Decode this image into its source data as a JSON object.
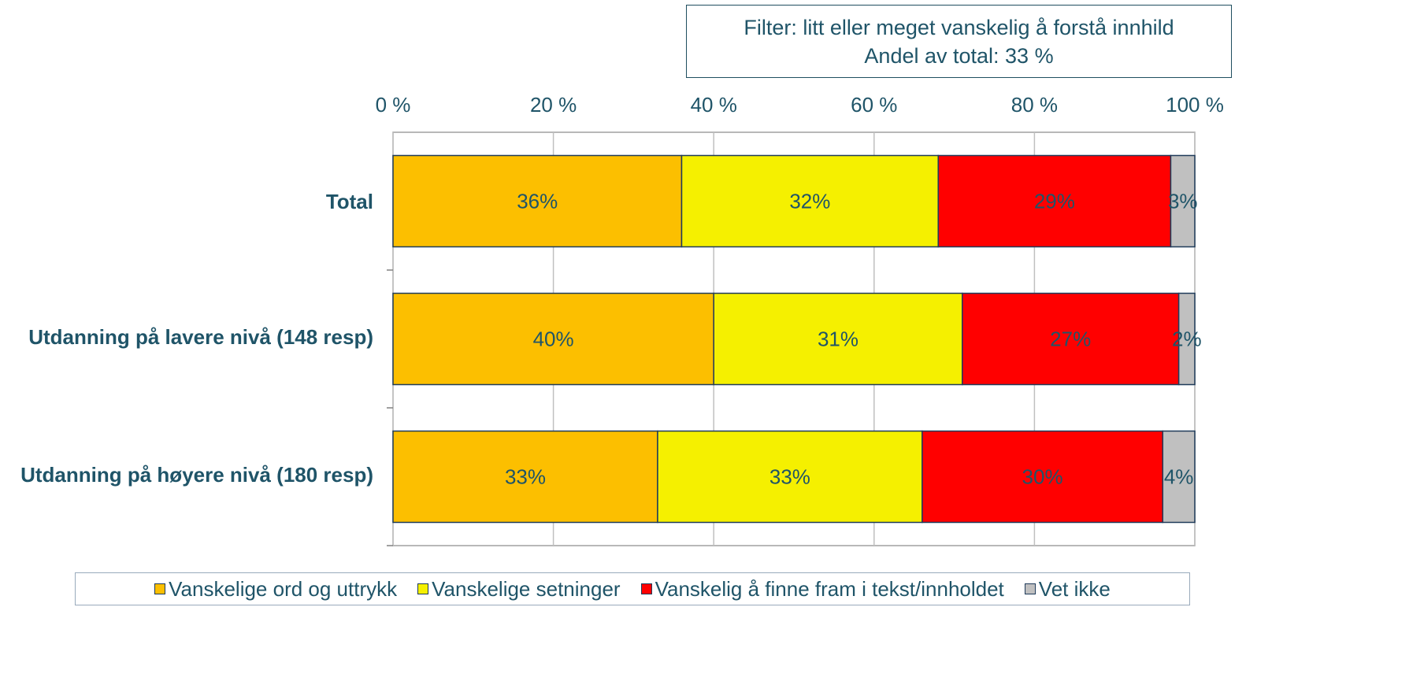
{
  "chart_data": {
    "type": "stacked_barh",
    "annotations": [
      "Filter: litt eller meget vanskelig å forstå innhild",
      "Andel av total: 33 %"
    ],
    "categories": [
      "Total",
      "Utdanning på lavere nivå (148 resp)",
      "Utdanning på høyere nivå (180 resp)"
    ],
    "series": [
      {
        "name": "Vanskelige ord og uttrykk",
        "color": "#fcbf00",
        "values": [
          36,
          40,
          33
        ],
        "value_labels": [
          "36%",
          "40%",
          "33%"
        ]
      },
      {
        "name": "Vanskelige setninger",
        "color": "#f5f000",
        "values": [
          32,
          31,
          33
        ],
        "value_labels": [
          "32%",
          "31%",
          "33%"
        ]
      },
      {
        "name": "Vanskelig å finne fram i tekst/innholdet",
        "color": "#ff0000",
        "values": [
          29,
          27,
          30
        ],
        "value_labels": [
          "29%",
          "27%",
          "30%"
        ]
      },
      {
        "name": "Vet ikke",
        "color": "#c0c0c0",
        "values": [
          3,
          2,
          4
        ],
        "value_labels": [
          "3%",
          "2%",
          "4%"
        ]
      }
    ],
    "xlim": [
      0,
      100
    ],
    "xticks": [
      {
        "value": 0,
        "label": "0 %"
      },
      {
        "value": 20,
        "label": "20 %"
      },
      {
        "value": 40,
        "label": "40 %"
      },
      {
        "value": 60,
        "label": "60 %"
      },
      {
        "value": 80,
        "label": "80 %"
      },
      {
        "value": 100,
        "label": "100 %"
      }
    ],
    "grid": true,
    "legend": "bottom"
  }
}
